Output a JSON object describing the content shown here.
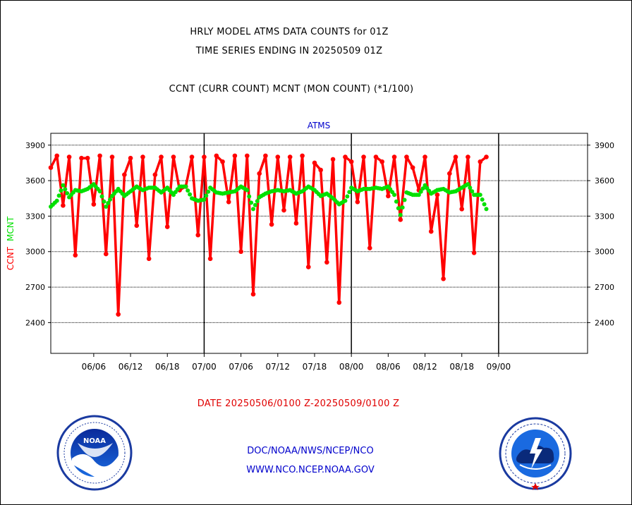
{
  "header": {
    "title_line1": "HRLY MODEL ATMS DATA COUNTS for 01Z",
    "title_line2": "TIME SERIES ENDING IN 20250509 01Z",
    "subtitle": "CCNT (CURR COUNT) MCNT (MON COUNT) (*1/100)"
  },
  "footer": {
    "date_range": "DATE 20250506/0100 Z-20250509/0100 Z",
    "org_path": "DOC/NOAA/NWS/NCEP/NCO",
    "website": "WWW.NCO.NCEP.NOAA.GOV"
  },
  "logos": {
    "noaa": "noaa-logo",
    "nws": "nws-logo"
  },
  "colors": {
    "ccnt": "#ff0000",
    "mcnt": "#00e000",
    "panel_title": "#0000cc"
  },
  "chart_data": {
    "type": "line",
    "title": "ATMS",
    "ylabel_left": [
      "CCNT",
      "MCNT"
    ],
    "ylim": [
      2140,
      4000
    ],
    "yticks": [
      2400,
      2700,
      3000,
      3300,
      3600,
      3900
    ],
    "xlim": [
      0,
      87.5
    ],
    "xticks": [
      {
        "label": "06/06",
        "x": 7
      },
      {
        "label": "06/12",
        "x": 13
      },
      {
        "label": "06/18",
        "x": 19
      },
      {
        "label": "07/00",
        "x": 25
      },
      {
        "label": "07/06",
        "x": 31
      },
      {
        "label": "07/12",
        "x": 37
      },
      {
        "label": "07/18",
        "x": 43
      },
      {
        "label": "08/00",
        "x": 49
      },
      {
        "label": "08/06",
        "x": 55
      },
      {
        "label": "08/12",
        "x": 61
      },
      {
        "label": "08/18",
        "x": 67
      },
      {
        "label": "09/00",
        "x": 73
      }
    ],
    "day_dividers": [
      25,
      49,
      73
    ],
    "grid": true,
    "series": [
      {
        "name": "CCNT",
        "marker": "line-with-dots",
        "values": [
          3710,
          3810,
          3390,
          3800,
          2970,
          3790,
          3790,
          3400,
          3810,
          2980,
          3800,
          2470,
          3650,
          3790,
          3220,
          3800,
          2940,
          3650,
          3800,
          3210,
          3800,
          3520,
          3550,
          3800,
          3140,
          3800,
          2940,
          3810,
          3760,
          3420,
          3810,
          3000,
          3810,
          2640,
          3660,
          3810,
          3230,
          3800,
          3350,
          3800,
          3240,
          3810,
          2870,
          3750,
          3690,
          2910,
          3780,
          2570,
          3800,
          3760,
          3420,
          3800,
          3030,
          3800,
          3760,
          3470,
          3800,
          3270,
          3800,
          3710,
          3520,
          3800,
          3170,
          3480,
          2770,
          3660,
          3800,
          3360,
          3800,
          2990,
          3760,
          3800
        ]
      },
      {
        "name": "MCNT",
        "marker": "dotted",
        "values": [
          3380,
          3430,
          3560,
          3460,
          3520,
          3510,
          3530,
          3570,
          3510,
          3380,
          3470,
          3530,
          3470,
          3510,
          3550,
          3520,
          3540,
          3540,
          3500,
          3540,
          3480,
          3550,
          3550,
          3450,
          3430,
          3440,
          3540,
          3500,
          3490,
          3500,
          3510,
          3550,
          3520,
          3360,
          3460,
          3490,
          3510,
          3520,
          3510,
          3520,
          3490,
          3510,
          3550,
          3520,
          3470,
          3490,
          3450,
          3400,
          3430,
          3540,
          3510,
          3530,
          3530,
          3540,
          3530,
          3550,
          3480,
          3310,
          3500,
          3480,
          3480,
          3560,
          3490,
          3520,
          3530,
          3500,
          3510,
          3540,
          3570,
          3480,
          3480,
          3360
        ]
      }
    ]
  }
}
